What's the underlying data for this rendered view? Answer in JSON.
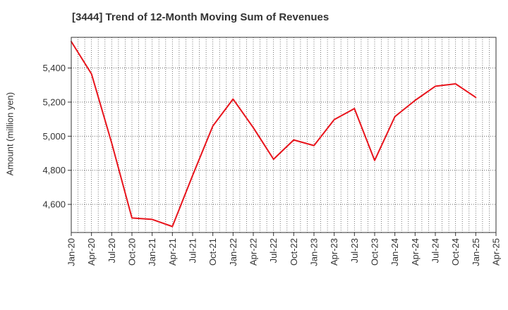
{
  "chart_data": {
    "type": "line",
    "title": "[3444]  Trend of 12-Month Moving Sum of Revenues",
    "xlabel": "",
    "ylabel": "Amount (million yen)",
    "categories": [
      "Jan-20",
      "Apr-20",
      "Jul-20",
      "Oct-20",
      "Jan-21",
      "Apr-21",
      "Jul-21",
      "Oct-21",
      "Jan-22",
      "Apr-22",
      "Jul-22",
      "Oct-22",
      "Jan-23",
      "Apr-23",
      "Jul-23",
      "Oct-23",
      "Jan-24",
      "Apr-24",
      "Jul-24",
      "Oct-24",
      "Jan-25",
      "Apr-25"
    ],
    "yticks": [
      4600,
      4800,
      5000,
      5200,
      5400
    ],
    "ytick_labels": [
      "4,600",
      "4,800",
      "5,000",
      "5,200",
      "5,400"
    ],
    "ylim": [
      4435,
      5580
    ],
    "grid": true,
    "series": [
      {
        "color": "#e8141c",
        "values": [
          5555,
          5365,
          4960,
          4520,
          4512,
          4470,
          4770,
          5060,
          5218,
          5050,
          4865,
          4978,
          4945,
          5097,
          5162,
          4858,
          5115,
          5210,
          5293,
          5307,
          5228,
          null
        ]
      }
    ]
  }
}
